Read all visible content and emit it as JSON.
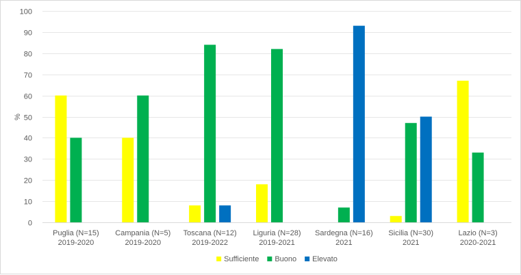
{
  "chart_data": {
    "type": "bar",
    "title": "",
    "xlabel": "",
    "ylabel": "%",
    "ylim": [
      0,
      100
    ],
    "yticks": [
      0,
      10,
      20,
      30,
      40,
      50,
      60,
      70,
      80,
      90,
      100
    ],
    "grid": true,
    "legend_position": "bottom",
    "categories": [
      [
        "Puglia (N=15)",
        "2019-2020"
      ],
      [
        "Campania (N=5)",
        "2019-2020"
      ],
      [
        "Toscana (N=12)",
        "2019-2022"
      ],
      [
        "Liguria (N=28)",
        "2019-2021"
      ],
      [
        "Sardegna (N=16)",
        "2021"
      ],
      [
        "Sicilia (N=30)",
        "2021"
      ],
      [
        "Lazio (N=3)",
        "2020-2021"
      ]
    ],
    "series": [
      {
        "name": "Sufficiente",
        "color": "#ffff00",
        "values": [
          60,
          40,
          8,
          18,
          0,
          3,
          67
        ]
      },
      {
        "name": "Buono",
        "color": "#00b050",
        "values": [
          40,
          60,
          84,
          82,
          7,
          47,
          33
        ]
      },
      {
        "name": "Elevato",
        "color": "#0070c0",
        "values": [
          0,
          0,
          8,
          0,
          93,
          50,
          0
        ]
      }
    ]
  }
}
